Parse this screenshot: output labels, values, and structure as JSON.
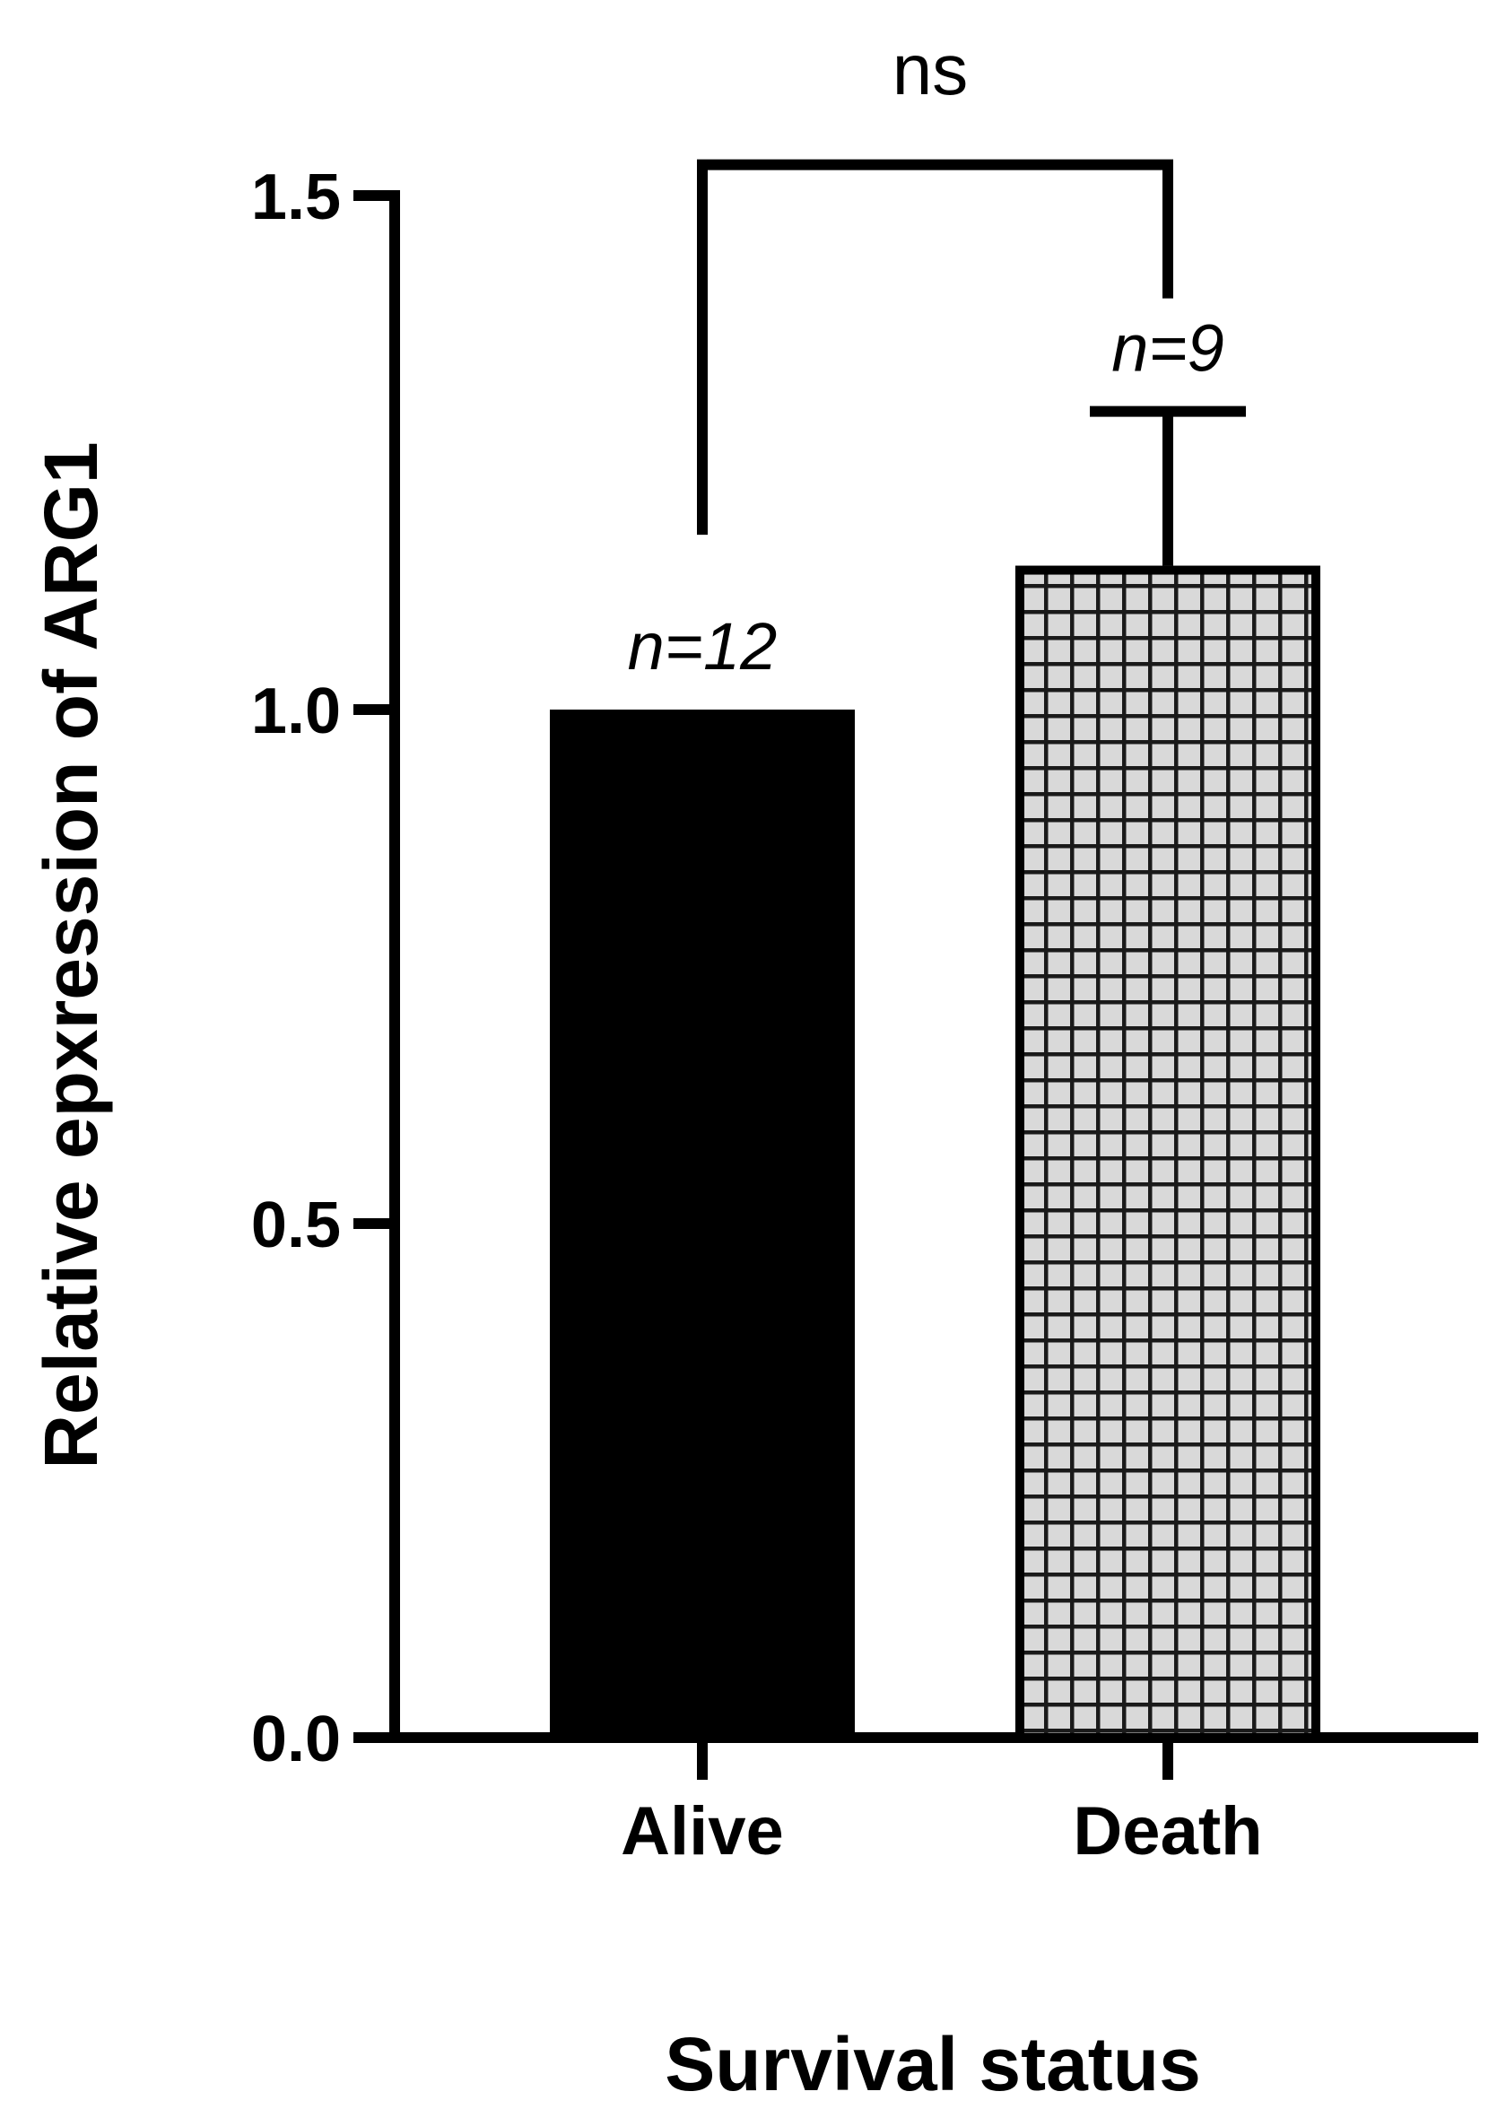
{
  "chart_data": {
    "type": "bar",
    "categories": [
      "Alive",
      "Death"
    ],
    "values": [
      1.0,
      1.14
    ],
    "error_upper": [
      null,
      1.29
    ],
    "n_labels": [
      "n=12",
      "n=9"
    ],
    "colors": [
      "#000000",
      "#d9d9d9"
    ],
    "fill_patterns": [
      "solid",
      "grid"
    ],
    "xlabel": "Survival status",
    "ylabel": "Relative epxression of ARG1",
    "ylim": [
      0,
      1.5
    ],
    "yticks": [
      "0.0",
      "0.5",
      "1.0",
      "1.5"
    ],
    "significance": {
      "label": "ns",
      "between": [
        "Alive",
        "Death"
      ],
      "bracket_top": 1.53
    },
    "grid": false,
    "legend": "none"
  }
}
